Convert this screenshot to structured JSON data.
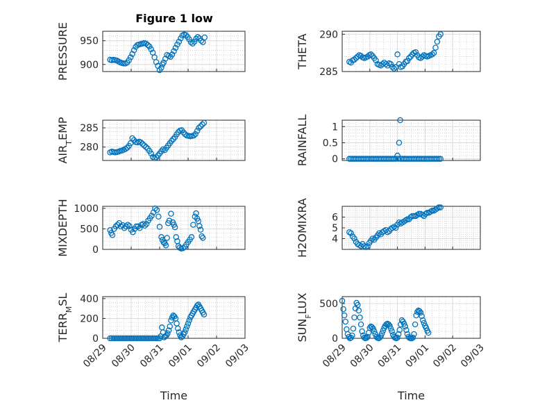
{
  "figure": {
    "title": "Figure 1 low"
  },
  "chart_data": [
    {
      "type": "scatter",
      "id": "pressure",
      "ylabel": "PRESSURE",
      "ylim": [
        885,
        970
      ],
      "yticks": [
        900,
        950
      ],
      "xlim": [
        0,
        5
      ],
      "grid": true,
      "x": [
        0.26,
        0.32,
        0.38,
        0.44,
        0.5,
        0.56,
        0.62,
        0.68,
        0.74,
        0.8,
        0.86,
        0.92,
        0.98,
        1.04,
        1.1,
        1.16,
        1.22,
        1.28,
        1.34,
        1.4,
        1.46,
        1.52,
        1.58,
        1.64,
        1.7,
        1.76,
        1.82,
        1.88,
        1.94,
        2.0,
        2.06,
        2.1,
        2.14,
        2.2,
        2.26,
        2.32,
        2.38,
        2.44,
        2.5,
        2.56,
        2.62,
        2.68,
        2.74,
        2.8,
        2.86,
        2.92,
        2.98,
        3.04,
        3.1,
        3.16,
        3.22,
        3.28,
        3.34,
        3.4,
        3.46,
        3.52,
        3.58
      ],
      "y": [
        910,
        909,
        910,
        909,
        908,
        906,
        904,
        903,
        902,
        902,
        904,
        909,
        915,
        922,
        930,
        937,
        941,
        942,
        943,
        944,
        945,
        944,
        941,
        938,
        932,
        925,
        915,
        905,
        897,
        888,
        893,
        900,
        904,
        912,
        920,
        918,
        916,
        921,
        928,
        935,
        942,
        948,
        955,
        961,
        963,
        962,
        958,
        953,
        947,
        944,
        948,
        954,
        958,
        955,
        950,
        947,
        957
      ]
    },
    {
      "type": "scatter",
      "id": "theta",
      "ylabel": "THETA",
      "ylim": [
        285,
        290.4
      ],
      "yticks": [
        285,
        290
      ],
      "xlim": [
        0,
        5
      ],
      "grid": true,
      "x": [
        0.26,
        0.32,
        0.38,
        0.44,
        0.5,
        0.56,
        0.62,
        0.68,
        0.74,
        0.8,
        0.86,
        0.92,
        0.98,
        1.04,
        1.1,
        1.16,
        1.22,
        1.28,
        1.34,
        1.4,
        1.46,
        1.52,
        1.58,
        1.64,
        1.7,
        1.76,
        1.82,
        1.88,
        1.94,
        2.0,
        2.06,
        2.12,
        2.18,
        2.24,
        2.3,
        2.36,
        2.42,
        2.48,
        2.54,
        2.6,
        2.66,
        2.72,
        2.78,
        2.84,
        2.9,
        2.96,
        3.02,
        3.08,
        3.14,
        3.2,
        3.26,
        3.32,
        3.38,
        3.44,
        3.5,
        3.56
      ],
      "y": [
        286.3,
        286.2,
        286.5,
        286.6,
        286.8,
        287.0,
        287.2,
        287.1,
        286.9,
        286.8,
        286.9,
        287.0,
        287.2,
        287.3,
        287.1,
        286.8,
        286.5,
        286.0,
        285.9,
        285.8,
        286.0,
        286.2,
        286.0,
        285.8,
        286.1,
        286.0,
        285.6,
        285.4,
        285.6,
        287.3,
        286.0,
        285.6,
        285.7,
        286.0,
        286.3,
        286.4,
        286.8,
        287.0,
        287.3,
        287.5,
        287.6,
        287.2,
        286.9,
        286.8,
        287.0,
        287.2,
        287.1,
        287.0,
        287.1,
        287.2,
        287.3,
        287.5,
        288.2,
        289.0,
        289.7,
        290.0
      ]
    },
    {
      "type": "scatter",
      "id": "air_temp",
      "ylabel": "AIR_TEMP",
      "ylim": [
        276.5,
        287
      ],
      "yticks": [
        280,
        285
      ],
      "xlim": [
        0,
        5
      ],
      "grid": true,
      "x": [
        0.26,
        0.32,
        0.38,
        0.44,
        0.5,
        0.56,
        0.62,
        0.68,
        0.74,
        0.8,
        0.86,
        0.92,
        0.98,
        1.04,
        1.1,
        1.16,
        1.22,
        1.28,
        1.34,
        1.4,
        1.46,
        1.52,
        1.58,
        1.64,
        1.7,
        1.76,
        1.82,
        1.88,
        1.94,
        2.0,
        2.06,
        2.12,
        2.18,
        2.24,
        2.3,
        2.36,
        2.42,
        2.48,
        2.54,
        2.6,
        2.66,
        2.72,
        2.78,
        2.84,
        2.9,
        2.96,
        3.02,
        3.08,
        3.14,
        3.2,
        3.26,
        3.32,
        3.38,
        3.44,
        3.5,
        3.56
      ],
      "y": [
        278.6,
        278.8,
        278.7,
        278.6,
        278.7,
        278.8,
        279.0,
        279.1,
        279.3,
        279.5,
        279.8,
        280.3,
        281.0,
        282.3,
        281.8,
        281.3,
        281.2,
        281.4,
        281.2,
        280.8,
        280.4,
        280.0,
        279.6,
        279.0,
        278.3,
        277.4,
        277.1,
        277.3,
        277.8,
        278.3,
        278.9,
        279.4,
        279.2,
        279.8,
        280.4,
        281.0,
        281.6,
        282.1,
        282.6,
        283.3,
        283.9,
        284.3,
        284.4,
        283.8,
        283.3,
        283.0,
        282.9,
        282.8,
        282.9,
        283.0,
        283.4,
        284.2,
        285.0,
        285.4,
        285.9,
        286.3
      ]
    },
    {
      "type": "scatter",
      "id": "rainfall",
      "ylabel": "RAINFALL",
      "ylim": [
        -0.05,
        1.2
      ],
      "yticks": [
        0,
        0.5,
        1
      ],
      "xlim": [
        0,
        5
      ],
      "grid": true,
      "x": [
        0.26,
        0.32,
        0.38,
        0.44,
        0.5,
        0.56,
        0.62,
        0.68,
        0.74,
        0.8,
        0.86,
        0.92,
        0.98,
        1.04,
        1.1,
        1.16,
        1.22,
        1.28,
        1.34,
        1.4,
        1.46,
        1.52,
        1.58,
        1.64,
        1.7,
        1.76,
        1.82,
        1.88,
        1.94,
        2.0,
        2.03,
        2.06,
        2.1,
        2.12,
        2.18,
        2.24,
        2.3,
        2.36,
        2.42,
        2.48,
        2.54,
        2.6,
        2.66,
        2.72,
        2.78,
        2.84,
        2.9,
        2.96,
        3.02,
        3.08,
        3.14,
        3.2,
        3.26,
        3.32,
        3.38,
        3.44,
        3.5,
        3.56
      ],
      "y": [
        0,
        0,
        0,
        0,
        0,
        0,
        0,
        0,
        0,
        0,
        0,
        0,
        0,
        0,
        0,
        0,
        0,
        0,
        0,
        0,
        0,
        0,
        0,
        0,
        0,
        0,
        0,
        0,
        0,
        0.1,
        0,
        0.5,
        1.2,
        0,
        0,
        0,
        0,
        0,
        0,
        0,
        0,
        0,
        0,
        0,
        0,
        0,
        0,
        0,
        0,
        0,
        0,
        0,
        0,
        0,
        0,
        0,
        0,
        0
      ]
    },
    {
      "type": "scatter",
      "id": "mixdepth",
      "ylabel": "MIXDEPTH",
      "ylim": [
        0,
        1050
      ],
      "yticks": [
        0,
        500,
        1000
      ],
      "xlim": [
        0,
        5
      ],
      "grid": true,
      "x": [
        0.26,
        0.3,
        0.34,
        0.4,
        0.46,
        0.52,
        0.58,
        0.64,
        0.7,
        0.76,
        0.82,
        0.88,
        0.94,
        1.0,
        1.06,
        1.12,
        1.18,
        1.24,
        1.3,
        1.36,
        1.42,
        1.48,
        1.54,
        1.6,
        1.66,
        1.72,
        1.78,
        1.84,
        1.9,
        1.96,
        2.0,
        2.06,
        2.1,
        2.14,
        2.18,
        2.22,
        2.26,
        2.3,
        2.34,
        2.4,
        2.46,
        2.5,
        2.54,
        2.58,
        2.62,
        2.66,
        2.7,
        2.76,
        2.82,
        2.88,
        2.94,
        3.0,
        3.06,
        3.12,
        3.18,
        3.24,
        3.28,
        3.32,
        3.36,
        3.4,
        3.44,
        3.48,
        3.52
      ],
      "y": [
        470,
        400,
        350,
        500,
        560,
        600,
        640,
        560,
        590,
        520,
        560,
        600,
        570,
        480,
        420,
        500,
        560,
        560,
        520,
        600,
        620,
        580,
        620,
        700,
        760,
        820,
        900,
        1000,
        960,
        800,
        550,
        300,
        230,
        170,
        150,
        100,
        280,
        640,
        700,
        870,
        660,
        600,
        540,
        300,
        200,
        80,
        40,
        20,
        30,
        60,
        120,
        180,
        240,
        300,
        600,
        800,
        880,
        750,
        690,
        570,
        480,
        320,
        280
      ]
    },
    {
      "type": "scatter",
      "id": "h2omixra",
      "ylabel": "H2OMIXRA",
      "ylim": [
        3.0,
        7.0
      ],
      "yticks": [
        4,
        5,
        6
      ],
      "xlim": [
        0,
        5
      ],
      "grid": true,
      "x": [
        0.26,
        0.32,
        0.38,
        0.44,
        0.5,
        0.56,
        0.62,
        0.68,
        0.74,
        0.8,
        0.86,
        0.92,
        0.98,
        1.04,
        1.1,
        1.16,
        1.22,
        1.28,
        1.34,
        1.4,
        1.46,
        1.52,
        1.58,
        1.64,
        1.7,
        1.76,
        1.82,
        1.88,
        1.94,
        2.0,
        2.06,
        2.12,
        2.18,
        2.24,
        2.3,
        2.36,
        2.42,
        2.48,
        2.54,
        2.6,
        2.66,
        2.72,
        2.78,
        2.84,
        2.9,
        2.96,
        3.02,
        3.08,
        3.14,
        3.2,
        3.26,
        3.32,
        3.38,
        3.44,
        3.5,
        3.56
      ],
      "y": [
        4.6,
        4.5,
        4.2,
        4.0,
        3.7,
        3.5,
        3.4,
        3.3,
        3.5,
        3.3,
        3.2,
        3.3,
        3.6,
        3.8,
        4.0,
        3.9,
        4.1,
        4.3,
        4.5,
        4.4,
        4.6,
        4.7,
        4.8,
        4.6,
        4.7,
        4.9,
        5.0,
        5.1,
        5.0,
        5.3,
        5.5,
        5.4,
        5.5,
        5.6,
        5.7,
        5.8,
        5.8,
        6.0,
        6.1,
        6.1,
        6.1,
        6.2,
        6.3,
        6.3,
        6.2,
        6.1,
        6.3,
        6.4,
        6.4,
        6.5,
        6.6,
        6.6,
        6.7,
        6.8,
        6.9,
        6.9
      ]
    },
    {
      "type": "scatter",
      "id": "terr_msl",
      "ylabel": "TERR_MSL",
      "ylim": [
        0,
        420
      ],
      "yticks": [
        0,
        200,
        400
      ],
      "xlim": [
        0,
        5
      ],
      "grid": true,
      "xticklabels": [
        "08/29",
        "08/30",
        "08/31",
        "09/01",
        "09/02",
        "09/03"
      ],
      "xlabel": "Time",
      "x": [
        0.26,
        0.32,
        0.38,
        0.44,
        0.5,
        0.56,
        0.62,
        0.68,
        0.74,
        0.8,
        0.86,
        0.92,
        0.98,
        1.04,
        1.1,
        1.16,
        1.22,
        1.28,
        1.34,
        1.4,
        1.46,
        1.52,
        1.58,
        1.64,
        1.7,
        1.76,
        1.82,
        1.88,
        1.94,
        2.0,
        2.04,
        2.08,
        2.12,
        2.16,
        2.2,
        2.24,
        2.28,
        2.32,
        2.36,
        2.4,
        2.44,
        2.48,
        2.52,
        2.56,
        2.6,
        2.64,
        2.68,
        2.72,
        2.76,
        2.8,
        2.84,
        2.88,
        2.92,
        2.96,
        3.0,
        3.04,
        3.08,
        3.12,
        3.16,
        3.2,
        3.24,
        3.28,
        3.32,
        3.36,
        3.4,
        3.44,
        3.48,
        3.52,
        3.56
      ],
      "y": [
        0,
        0,
        0,
        0,
        0,
        0,
        0,
        0,
        0,
        0,
        0,
        0,
        0,
        0,
        0,
        0,
        0,
        0,
        0,
        0,
        0,
        0,
        0,
        0,
        0,
        0,
        0,
        0,
        0,
        0,
        20,
        110,
        60,
        10,
        20,
        30,
        50,
        80,
        120,
        180,
        210,
        230,
        220,
        200,
        150,
        100,
        60,
        30,
        10,
        20,
        40,
        60,
        90,
        120,
        150,
        180,
        210,
        230,
        250,
        270,
        290,
        310,
        330,
        340,
        320,
        300,
        280,
        260,
        240
      ]
    },
    {
      "type": "scatter",
      "id": "sun_flux",
      "ylabel": "SUN_FLUX",
      "ylim": [
        0,
        600
      ],
      "yticks": [
        0,
        500
      ],
      "xlim": [
        0,
        5
      ],
      "grid": true,
      "xticklabels": [
        "08/29",
        "08/30",
        "08/31",
        "09/01",
        "09/02",
        "09/03"
      ],
      "xlabel": "Time",
      "x": [
        0.0,
        0.04,
        0.08,
        0.12,
        0.16,
        0.2,
        0.24,
        0.28,
        0.32,
        0.36,
        0.4,
        0.44,
        0.48,
        0.52,
        0.56,
        0.6,
        0.64,
        0.68,
        0.72,
        0.76,
        0.8,
        0.84,
        0.88,
        0.92,
        0.96,
        1.0,
        1.04,
        1.08,
        1.12,
        1.16,
        1.2,
        1.24,
        1.28,
        1.32,
        1.36,
        1.4,
        1.44,
        1.48,
        1.52,
        1.56,
        1.6,
        1.64,
        1.68,
        1.72,
        1.76,
        1.8,
        1.84,
        1.88,
        1.92,
        1.96,
        2.0,
        2.04,
        2.08,
        2.12,
        2.16,
        2.2,
        2.24,
        2.28,
        2.32,
        2.36,
        2.4,
        2.44,
        2.48,
        2.52,
        2.56,
        2.6,
        2.64,
        2.68,
        2.72,
        2.76,
        2.8,
        2.84,
        2.88,
        2.92,
        2.96,
        3.0,
        3.04,
        3.08,
        3.12
      ],
      "y": [
        540,
        420,
        330,
        240,
        130,
        60,
        20,
        0,
        10,
        40,
        140,
        300,
        430,
        510,
        480,
        400,
        300,
        200,
        100,
        40,
        10,
        0,
        5,
        20,
        80,
        150,
        170,
        160,
        140,
        100,
        60,
        20,
        5,
        0,
        10,
        30,
        70,
        110,
        150,
        180,
        200,
        210,
        200,
        180,
        140,
        100,
        50,
        20,
        5,
        0,
        10,
        60,
        120,
        200,
        260,
        240,
        210,
        170,
        120,
        60,
        20,
        5,
        0,
        0,
        10,
        60,
        200,
        330,
        380,
        400,
        390,
        370,
        320,
        260,
        220,
        180,
        150,
        110,
        80
      ]
    }
  ]
}
